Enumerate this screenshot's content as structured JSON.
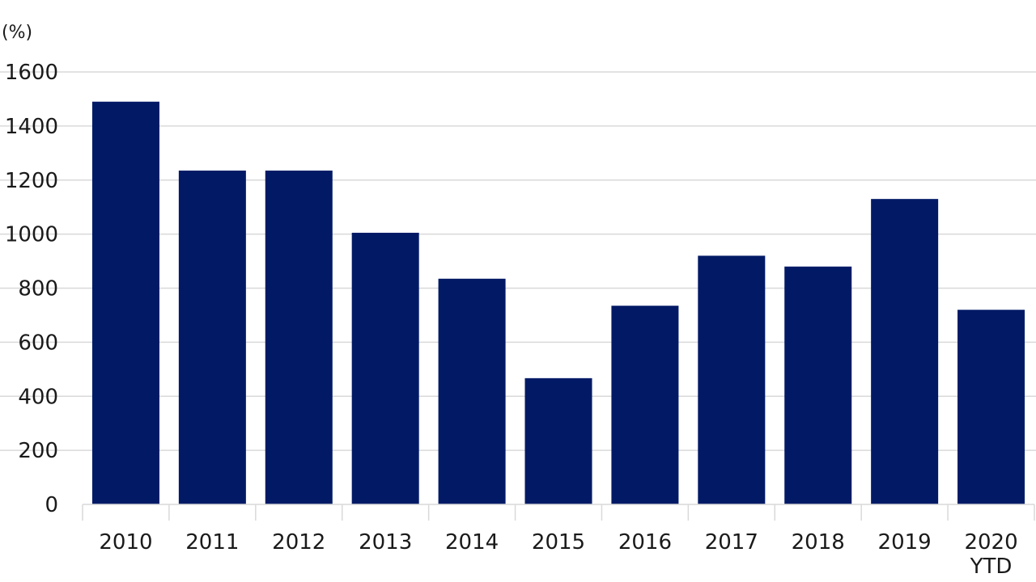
{
  "chart_data": {
    "type": "bar",
    "title": "",
    "xlabel": "",
    "ylabel": "(%)",
    "categories": [
      [
        "2010"
      ],
      [
        "2011"
      ],
      [
        "2012"
      ],
      [
        "2013"
      ],
      [
        "2014"
      ],
      [
        "2015"
      ],
      [
        "2016"
      ],
      [
        "2017"
      ],
      [
        "2018"
      ],
      [
        "2019"
      ],
      [
        "2020",
        "YTD"
      ]
    ],
    "values": [
      1490,
      1235,
      1235,
      1005,
      835,
      467,
      735,
      920,
      880,
      1130,
      720
    ],
    "ylim": [
      0,
      1600
    ],
    "yticks": [
      0,
      200,
      400,
      600,
      800,
      1000,
      1200,
      1400,
      1600
    ],
    "grid": true,
    "bar_color": "#021a66",
    "grid_color": "#d9d9d9"
  }
}
